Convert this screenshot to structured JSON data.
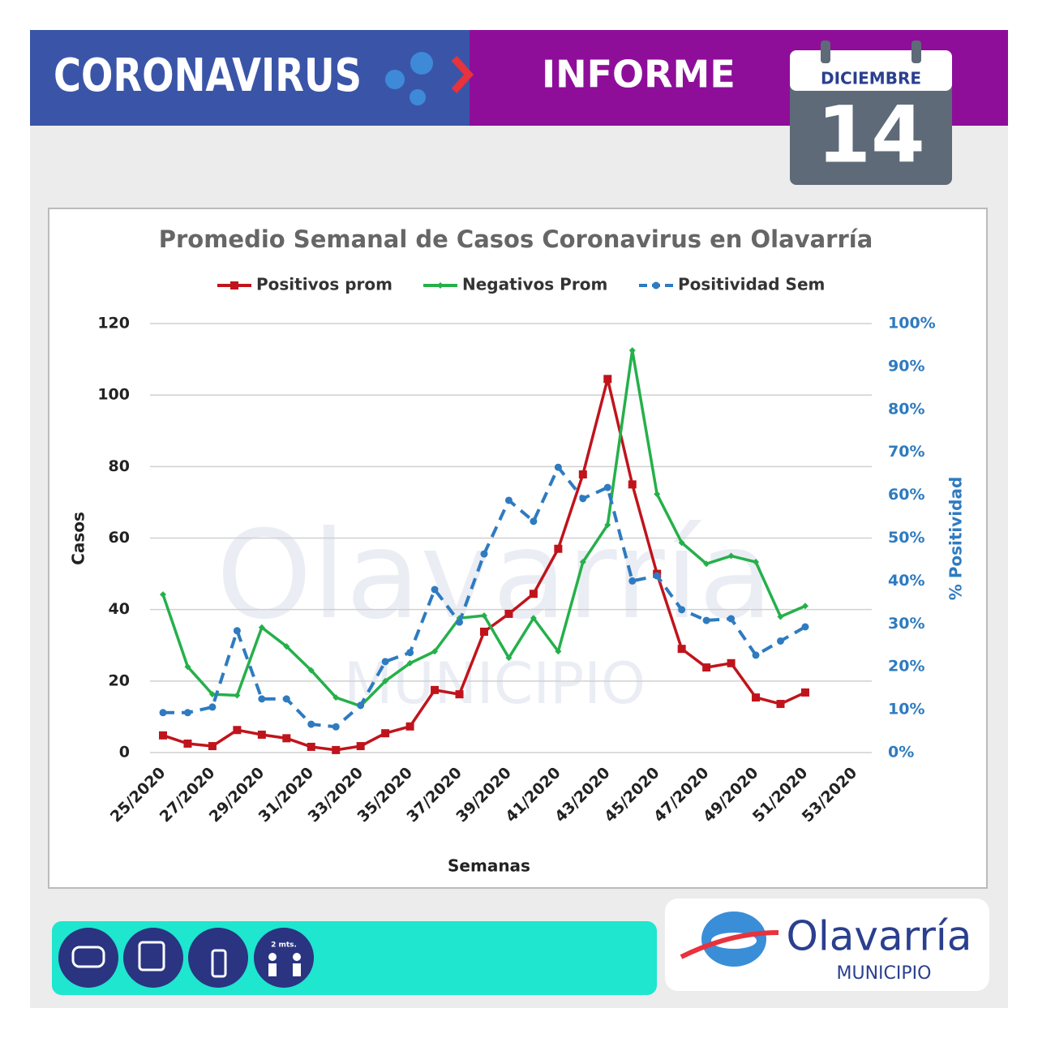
{
  "header": {
    "left": "CORONAVIRUS",
    "right": "INFORME",
    "month": "DICIEMBRE",
    "day": "14"
  },
  "chart_data": {
    "type": "line",
    "title": "Promedio Semanal de Casos Coronavirus en Olavarría",
    "x_label": "Semanas",
    "y_label": "Casos",
    "y2_label": "% Positividad",
    "legend": "top",
    "grid": true,
    "categories": [
      "25/2020",
      null,
      "27/2020",
      null,
      "29/2020",
      null,
      "31/2020",
      null,
      "33/2020",
      null,
      "35/2020",
      null,
      "37/2020",
      null,
      "39/2020",
      null,
      "41/2020",
      null,
      "43/2020",
      null,
      "45/2020",
      null,
      "47/2020",
      null,
      "49/2020",
      null,
      "51/2020",
      null,
      "53/2020"
    ],
    "ylim": [
      0,
      120
    ],
    "yticks": [
      0,
      20,
      40,
      60,
      80,
      100,
      120
    ],
    "y2lim": [
      0,
      100
    ],
    "y2ticks": [
      {
        "value": 0,
        "label": "0%"
      },
      {
        "value": 10,
        "label": "10%"
      },
      {
        "value": 20,
        "label": "20%"
      },
      {
        "value": 30,
        "label": "30%"
      },
      {
        "value": 40,
        "label": "40%"
      },
      {
        "value": 50,
        "label": "50%"
      },
      {
        "value": 60,
        "label": "60%"
      },
      {
        "value": 70,
        "label": "70%"
      },
      {
        "value": 80,
        "label": "80%"
      },
      {
        "value": 90,
        "label": "90%"
      },
      {
        "value": 100,
        "label": "100%"
      }
    ],
    "series": [
      {
        "name": "Positivos prom",
        "color": "#c0141c",
        "marker": "square",
        "values": [
          4.8,
          2.5,
          1.8,
          6.3,
          5,
          4,
          1.6,
          0.7,
          1.8,
          5.4,
          7.3,
          17.5,
          16.3,
          33.8,
          38.8,
          44.4,
          57,
          77.8,
          104.5,
          75,
          50,
          29,
          23.8,
          25,
          15.4,
          13.6,
          16.8,
          null,
          null
        ]
      },
      {
        "name": "Negativos Prom",
        "color": "#25b04a",
        "marker": "diamond",
        "values": [
          44.2,
          24,
          16.3,
          16,
          35,
          29.7,
          23,
          15.4,
          13,
          20,
          25,
          28.3,
          37.6,
          38.3,
          26.5,
          37.6,
          28.3,
          53.3,
          63.7,
          112.5,
          72.3,
          58.7,
          52.8,
          55,
          53.3,
          38,
          41,
          null,
          null
        ]
      },
      {
        "name": "Positividad Sem",
        "color": "#2e7bc0",
        "marker": "circle",
        "dashed": true,
        "axis": "y2",
        "values": [
          9.3,
          9.3,
          10.6,
          28.4,
          12.5,
          12.5,
          6.6,
          6,
          11,
          21.2,
          23.3,
          38,
          30.4,
          46.3,
          58.8,
          53.9,
          66.5,
          59.2,
          61.8,
          40,
          41.2,
          33.3,
          30.8,
          31.2,
          22.7,
          26,
          29.3,
          null,
          null
        ]
      }
    ]
  },
  "footer": {
    "distance": "2 mts.",
    "logo": "Olavarría",
    "logo_sub": "MUNICIPIO"
  }
}
